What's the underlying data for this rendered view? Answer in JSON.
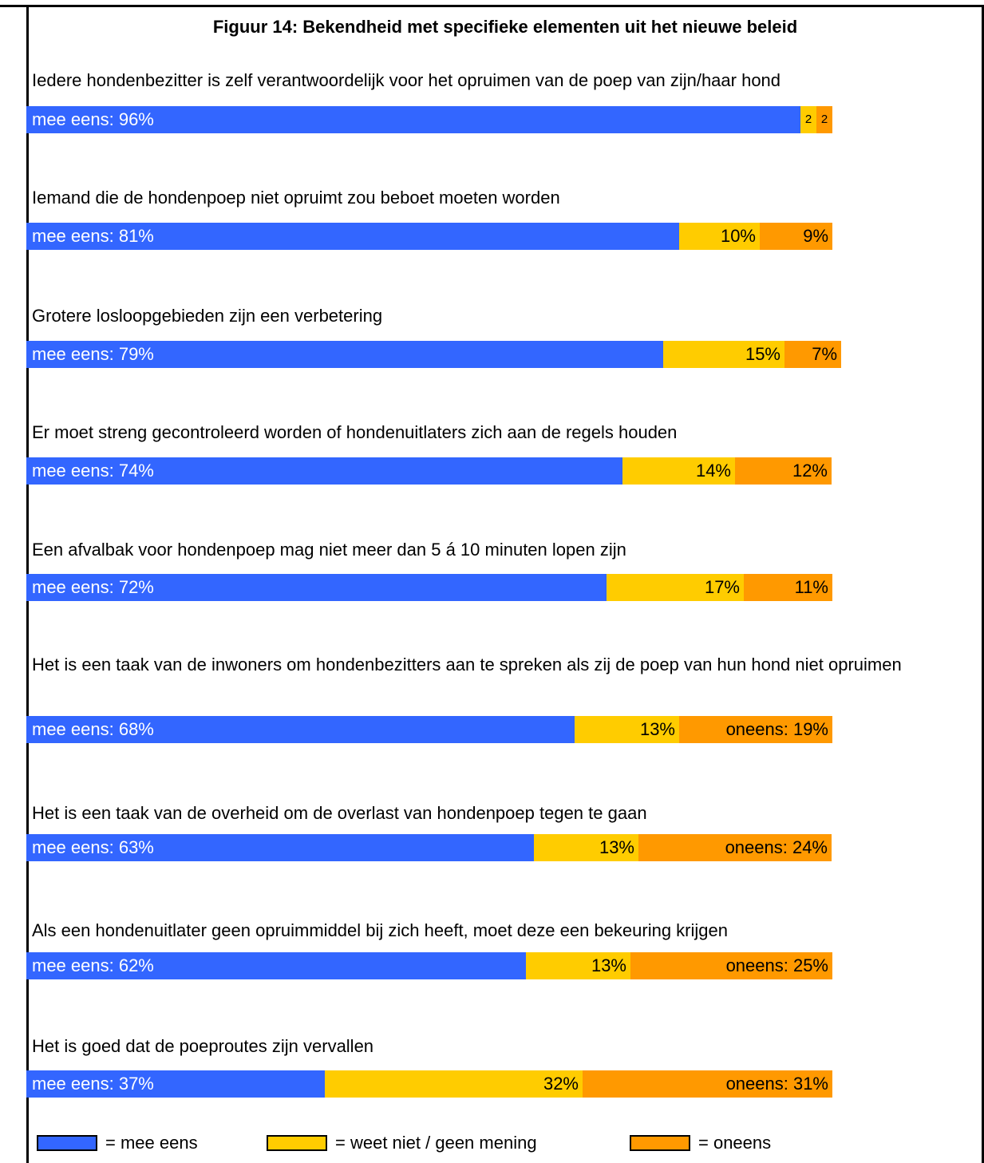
{
  "chart_data": {
    "type": "bar",
    "orientation": "horizontal",
    "stacked": true,
    "title": "Figuur 14: Bekendheid met specifieke elementen uit het nieuwe beleid",
    "xlim": [
      0,
      100
    ],
    "unit": "%",
    "categories": [
      "Iedere hondenbezitter is zelf verantwoordelijk voor het opruimen van de poep van zijn/haar hond",
      "Iemand die de hondenpoep niet opruimt zou beboet moeten worden",
      "Grotere losloopgebieden zijn een verbetering",
      "Er moet streng gecontroleerd worden of hondenuitlaters zich aan de regels houden",
      "Een afvalbak voor hondenpoep mag niet meer dan 5 á 10 minuten lopen zijn",
      "Het is een taak van de inwoners om hondenbezitters aan te spreken als zij de poep van hun hond niet opruimen",
      "Het is een taak van de overheid om de overlast van hondenpoep tegen te gaan",
      "Als een hondenuitlater geen opruimmiddel bij zich heeft, moet deze een bekeuring krijgen",
      "Het is goed dat de poeproutes zijn vervallen"
    ],
    "series": [
      {
        "name": "mee eens",
        "color": "#3366ff",
        "values": [
          96,
          81,
          79,
          74,
          72,
          68,
          63,
          62,
          37
        ]
      },
      {
        "name": "weet niet / geen mening",
        "color": "#ffcc00",
        "values": [
          2,
          10,
          15,
          14,
          17,
          13,
          13,
          13,
          32
        ]
      },
      {
        "name": "oneens",
        "color": "#ff9900",
        "values": [
          2,
          9,
          7,
          12,
          11,
          19,
          24,
          25,
          31
        ]
      }
    ],
    "bar_labels": [
      [
        "mee eens: 96%",
        "2",
        "2"
      ],
      [
        "mee eens: 81%",
        "10%",
        "9%"
      ],
      [
        "mee eens: 79%",
        "15%",
        "7%"
      ],
      [
        "mee eens: 74%",
        "14%",
        "12%"
      ],
      [
        "mee eens: 72%",
        "17%",
        "11%"
      ],
      [
        "mee eens: 68%",
        "13%",
        "oneens: 19%"
      ],
      [
        "mee eens: 63%",
        "13%",
        "oneens: 24%"
      ],
      [
        "mee eens: 62%",
        "13%",
        "oneens: 25%"
      ],
      [
        "mee eens: 37%",
        "32%",
        "oneens: 31%"
      ]
    ],
    "legend": {
      "placement": "bottom",
      "entries": [
        "= mee eens",
        "= weet niet / geen mening",
        "= oneens"
      ]
    }
  }
}
